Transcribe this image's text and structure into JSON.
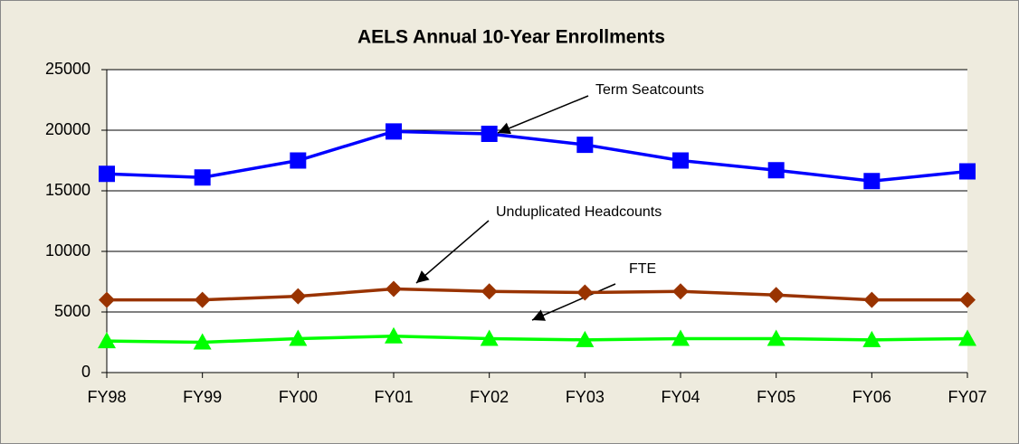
{
  "chart_data": {
    "type": "line",
    "title": "AELS Annual 10-Year Enrollments",
    "categories": [
      "FY98",
      "FY99",
      "FY00",
      "FY01",
      "FY02",
      "FY03",
      "FY04",
      "FY05",
      "FY06",
      "FY07"
    ],
    "series": [
      {
        "name": "Term Seatcounts",
        "color": "#0000ff",
        "marker": "square",
        "values": [
          16400,
          16100,
          17500,
          19900,
          19700,
          18800,
          17500,
          16700,
          15800,
          16600
        ]
      },
      {
        "name": "Unduplicated Headcounts",
        "color": "#993300",
        "marker": "diamond",
        "values": [
          6000,
          6000,
          6300,
          6900,
          6700,
          6600,
          6700,
          6400,
          6000,
          6000
        ]
      },
      {
        "name": "FTE",
        "color": "#00ff00",
        "marker": "triangle",
        "values": [
          2600,
          2500,
          2800,
          3000,
          2800,
          2700,
          2800,
          2800,
          2700,
          2800
        ]
      }
    ],
    "ylim": [
      0,
      25000
    ],
    "yticks": [
      0,
      5000,
      10000,
      15000,
      20000,
      25000
    ],
    "grid": true
  }
}
